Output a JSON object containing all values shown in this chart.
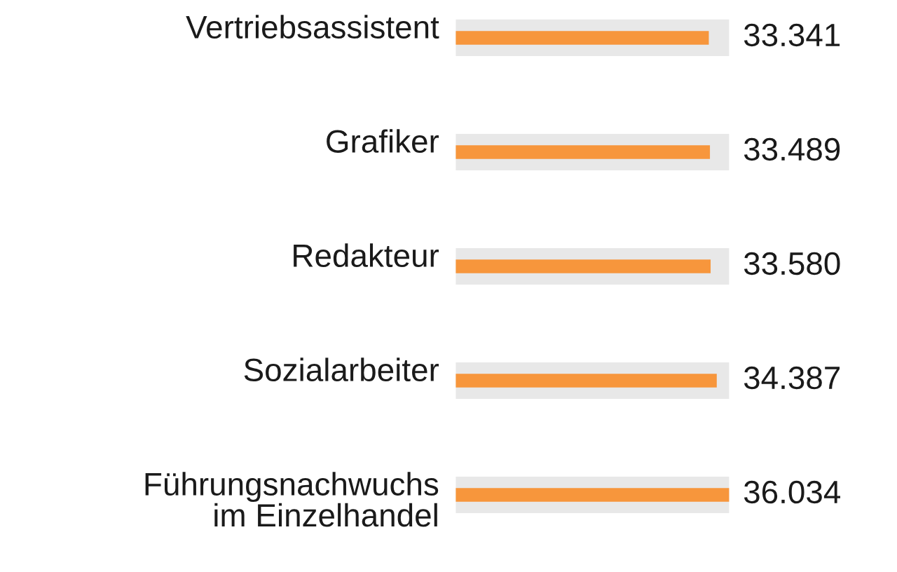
{
  "chart_data": {
    "type": "bar",
    "orientation": "horizontal",
    "categories": [
      "Vertriebsassistent",
      "Grafiker",
      "Redakteur",
      "Sozialarbeiter",
      "Führungsnachwuchs\nim Einzelhandel"
    ],
    "series": [
      {
        "color": "#e8e8e8",
        "values": [
          36034,
          36034,
          36034,
          36034,
          36034
        ]
      },
      {
        "color": "#f7963c",
        "values": [
          33341,
          33489,
          33580,
          34387,
          36034
        ],
        "value_labels": [
          "33.341",
          "33.489",
          "33.580",
          "34.387",
          "36.034"
        ]
      }
    ]
  }
}
